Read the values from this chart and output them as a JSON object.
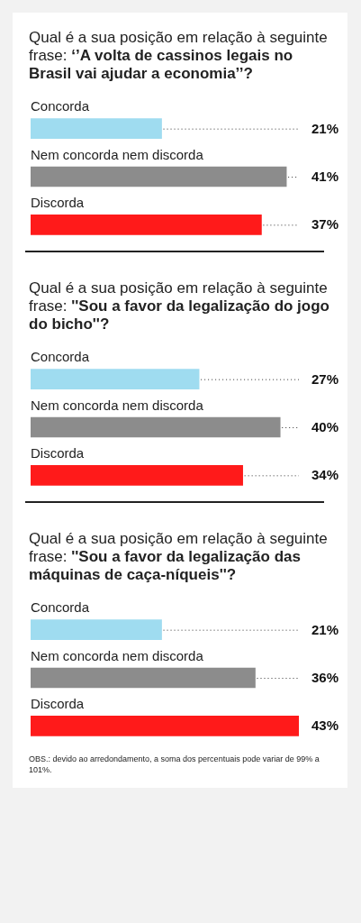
{
  "chart_data": [
    {
      "type": "bar",
      "orientation": "horizontal",
      "title": "Qual é a sua posição em relação à seguinte frase: ‘’A volta de cassinos legais no Brasil vai ajudar a economia’’?",
      "categories": [
        "Concorda",
        "Nem concorda nem discorda",
        "Discorda"
      ],
      "values": [
        21,
        41,
        37
      ],
      "colors": [
        "#9fdcf0",
        "#8c8c8c",
        "#ff1a1a"
      ],
      "value_labels": [
        "21%",
        "41%",
        "37%"
      ]
    },
    {
      "type": "bar",
      "orientation": "horizontal",
      "title": "Qual é a sua posição em relação à seguinte frase: ''Sou a favor da legalização do jogo do bicho''?",
      "categories": [
        "Concorda",
        "Nem concorda nem discorda",
        "Discorda"
      ],
      "values": [
        27,
        40,
        34
      ],
      "colors": [
        "#9fdcf0",
        "#8c8c8c",
        "#ff1a1a"
      ],
      "value_labels": [
        "27%",
        "40%",
        "34%"
      ]
    },
    {
      "type": "bar",
      "orientation": "horizontal",
      "title": "Qual é a sua posição em relação à seguinte frase: ''Sou a favor da legalização das máquinas de caça-níqueis''?",
      "categories": [
        "Concorda",
        "Nem concorda nem discorda",
        "Discorda"
      ],
      "values": [
        21,
        36,
        43
      ],
      "colors": [
        "#9fdcf0",
        "#8c8c8c",
        "#ff1a1a"
      ],
      "value_labels": [
        "21%",
        "36%",
        "43%"
      ],
      "annotations": [
        "OBS.: devido ao arredondamento, a soma dos percentuais pode variar de 99% a 101%."
      ]
    }
  ]
}
